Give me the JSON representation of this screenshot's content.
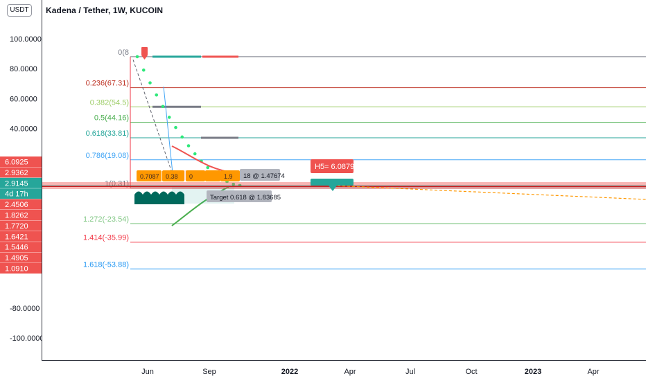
{
  "header": {
    "title": "Kadena / Tether, 1W, KUCOIN",
    "currency_button": "USDT"
  },
  "colors": {
    "bull": "#26a69a",
    "bear": "#ef5350",
    "green_dots": "#2ee87a",
    "fib_0": "#787b86",
    "fib_0236": "#c0392b",
    "fib_0382": "#9ccc65",
    "fib_05": "#4caf50",
    "fib_0618": "#26a69a",
    "fib_0786": "#42a5f5",
    "fib_1272": "#81c784",
    "fib_1414": "#f23645",
    "fib_1618": "#2196f3",
    "orange": "#ff9800"
  },
  "chart_data": {
    "type": "line",
    "title": "Kadena / Tether, 1W, KUCOIN",
    "y_axis": {
      "ticks": [
        "100.0000",
        "80.0000",
        "60.0000",
        "40.0000",
        "-80.0000",
        "-100.0000"
      ],
      "range": [
        -110,
        116
      ]
    },
    "x_axis": {
      "ticks": [
        "Jun",
        "Sep",
        "2022",
        "Apr",
        "Jul",
        "Oct",
        "2023",
        "Apr"
      ]
    },
    "fib_levels": [
      {
        "label": "0(8",
        "value": 88
      },
      {
        "label": "0.236(67.31)",
        "value": 67.31
      },
      {
        "label": "0.382(54.5)",
        "value": 54.5
      },
      {
        "label": "0.5(44.16)",
        "value": 44.16
      },
      {
        "label": "0.618(33.81)",
        "value": 33.81
      },
      {
        "label": "0.786(19.08)",
        "value": 19.08
      },
      {
        "label": "1(0.31)",
        "value": 0.31
      },
      {
        "label": "1.272(-23.54)",
        "value": -23.54
      },
      {
        "label": "1.414(-35.99)",
        "value": -35.99
      },
      {
        "label": "1.618(-53.88)",
        "value": -53.88
      }
    ],
    "price_tags": [
      {
        "label": "6.0925",
        "value": 6.09,
        "kind": "red"
      },
      {
        "label": "2.9362",
        "value": 2.94,
        "kind": "red"
      },
      {
        "label": "2.9145",
        "value": 2.91,
        "kind": "green"
      },
      {
        "label": "4d 17h",
        "value": 2.91,
        "kind": "green"
      },
      {
        "label": "2.4506",
        "value": 2.45,
        "kind": "red"
      },
      {
        "label": "1.8262",
        "value": 1.83,
        "kind": "red"
      },
      {
        "label": "1.7720",
        "value": 1.77,
        "kind": "red"
      },
      {
        "label": "1.6421",
        "value": 1.64,
        "kind": "red"
      },
      {
        "label": "1.5446",
        "value": 1.54,
        "kind": "red"
      },
      {
        "label": "1.4905",
        "value": 1.49,
        "kind": "red"
      },
      {
        "label": "1.0910",
        "value": 1.09,
        "kind": "red"
      }
    ],
    "annotations": {
      "target_upper": "18 @ 1.47674",
      "target_lower": "Target 0.618 @ 1.83685",
      "h5": "H5= 6.0879",
      "orange_box_1": "0.7087",
      "orange_box_2": "0.38",
      "orange_box_3": "0",
      "orange_box_4": "1.9"
    }
  }
}
